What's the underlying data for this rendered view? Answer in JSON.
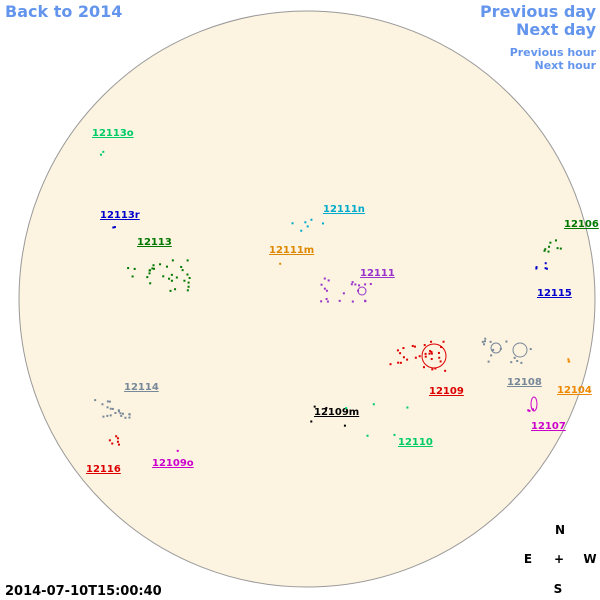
{
  "nav": {
    "back": "Back to 2014",
    "previous_day": "Previous day",
    "next_day": "Next day",
    "previous_hour": "Previous hour",
    "next_hour": "Next hour"
  },
  "timestamp": "2014-07-10T15:00:40",
  "compass": {
    "north": "N",
    "east": "E",
    "center": "+",
    "west": "W",
    "south": "S"
  },
  "regions": [
    {
      "label": "12113o",
      "color": "#00cc66"
    },
    {
      "label": "12113r",
      "color": "#0000cc"
    },
    {
      "label": "12113",
      "color": "#007700"
    },
    {
      "label": "12111n",
      "color": "#00aacc"
    },
    {
      "label": "12111m",
      "color": "#dd8800"
    },
    {
      "label": "12111",
      "color": "#9933cc"
    },
    {
      "label": "12106",
      "color": "#007700"
    },
    {
      "label": "12115",
      "color": "#0000cc"
    },
    {
      "label": "12109",
      "color": "#dd0000"
    },
    {
      "label": "12108",
      "color": "#778899"
    },
    {
      "label": "12104",
      "color": "#ee8800"
    },
    {
      "label": "12107",
      "color": "#cc00cc"
    },
    {
      "label": "12114",
      "color": "#778899"
    },
    {
      "label": "12116",
      "color": "#dd0000"
    },
    {
      "label": "12109o",
      "color": "#cc00cc"
    },
    {
      "label": "12109m",
      "color": "#000000"
    },
    {
      "label": "12110",
      "color": "#00cc66"
    }
  ]
}
